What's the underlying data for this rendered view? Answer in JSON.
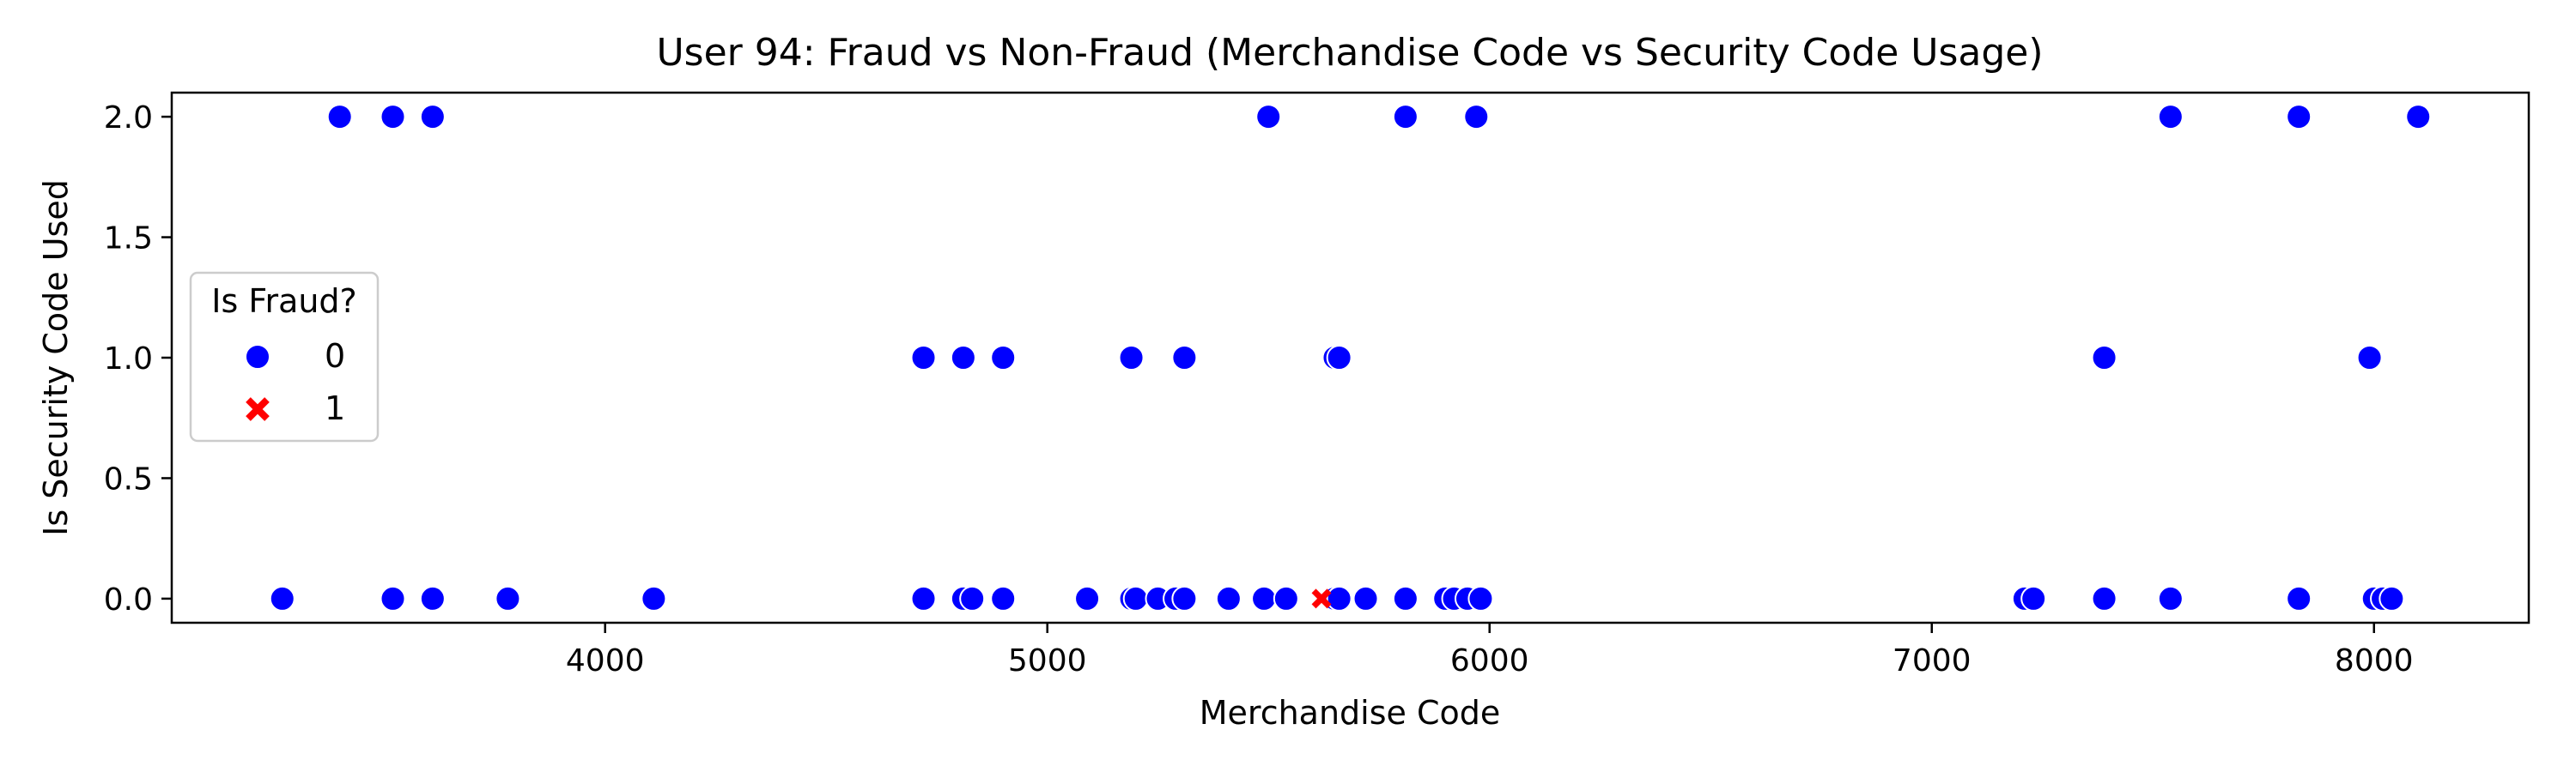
{
  "chart_data": {
    "type": "scatter",
    "title": "User 94: Fraud vs Non-Fraud (Merchandise Code vs Security Code Usage)",
    "xlabel": "Merchandise Code",
    "ylabel": "Is Security Code Used",
    "xlim": [
      3020,
      8350
    ],
    "ylim": [
      -0.1,
      2.1
    ],
    "xticks": [
      4000,
      5000,
      6000,
      7000,
      8000
    ],
    "xtick_labels": [
      "4000",
      "5000",
      "6000",
      "7000",
      "8000"
    ],
    "yticks": [
      0.0,
      0.5,
      1.0,
      1.5,
      2.0
    ],
    "ytick_labels": [
      "0.0",
      "0.5",
      "1.0",
      "1.5",
      "2.0"
    ],
    "grid": false,
    "legend": {
      "title": "Is Fraud?",
      "placement": "center-left",
      "entries": [
        {
          "label": "0",
          "marker": "circle",
          "color": "#0000ff"
        },
        {
          "label": "1",
          "marker": "x",
          "color": "#ff0000"
        }
      ]
    },
    "series": [
      {
        "name": "0",
        "color": "#0000ff",
        "marker": "circle",
        "points": [
          {
            "x": 3400,
            "y": 2
          },
          {
            "x": 3520,
            "y": 2
          },
          {
            "x": 3610,
            "y": 2
          },
          {
            "x": 5500,
            "y": 2
          },
          {
            "x": 5810,
            "y": 2
          },
          {
            "x": 5970,
            "y": 2
          },
          {
            "x": 7540,
            "y": 2
          },
          {
            "x": 7830,
            "y": 2
          },
          {
            "x": 8100,
            "y": 2
          },
          {
            "x": 4720,
            "y": 1
          },
          {
            "x": 4810,
            "y": 1
          },
          {
            "x": 4900,
            "y": 1
          },
          {
            "x": 5190,
            "y": 1
          },
          {
            "x": 5310,
            "y": 1
          },
          {
            "x": 5650,
            "y": 1
          },
          {
            "x": 5660,
            "y": 1
          },
          {
            "x": 7390,
            "y": 1
          },
          {
            "x": 7990,
            "y": 1
          },
          {
            "x": 3270,
            "y": 0
          },
          {
            "x": 3520,
            "y": 0
          },
          {
            "x": 3610,
            "y": 0
          },
          {
            "x": 3780,
            "y": 0
          },
          {
            "x": 4110,
            "y": 0
          },
          {
            "x": 4720,
            "y": 0
          },
          {
            "x": 4810,
            "y": 0
          },
          {
            "x": 4830,
            "y": 0
          },
          {
            "x": 4900,
            "y": 0
          },
          {
            "x": 5090,
            "y": 0
          },
          {
            "x": 5190,
            "y": 0
          },
          {
            "x": 5200,
            "y": 0
          },
          {
            "x": 5250,
            "y": 0
          },
          {
            "x": 5290,
            "y": 0
          },
          {
            "x": 5310,
            "y": 0
          },
          {
            "x": 5410,
            "y": 0
          },
          {
            "x": 5490,
            "y": 0
          },
          {
            "x": 5540,
            "y": 0
          },
          {
            "x": 5650,
            "y": 0
          },
          {
            "x": 5660,
            "y": 0
          },
          {
            "x": 5720,
            "y": 0
          },
          {
            "x": 5810,
            "y": 0
          },
          {
            "x": 5900,
            "y": 0
          },
          {
            "x": 5920,
            "y": 0
          },
          {
            "x": 5950,
            "y": 0
          },
          {
            "x": 5980,
            "y": 0
          },
          {
            "x": 7210,
            "y": 0
          },
          {
            "x": 7230,
            "y": 0
          },
          {
            "x": 7390,
            "y": 0
          },
          {
            "x": 7540,
            "y": 0
          },
          {
            "x": 7830,
            "y": 0
          },
          {
            "x": 8000,
            "y": 0
          },
          {
            "x": 8020,
            "y": 0
          },
          {
            "x": 8040,
            "y": 0
          }
        ]
      },
      {
        "name": "1",
        "color": "#ff0000",
        "marker": "x",
        "points": [
          {
            "x": 5620,
            "y": 0
          }
        ]
      }
    ]
  }
}
